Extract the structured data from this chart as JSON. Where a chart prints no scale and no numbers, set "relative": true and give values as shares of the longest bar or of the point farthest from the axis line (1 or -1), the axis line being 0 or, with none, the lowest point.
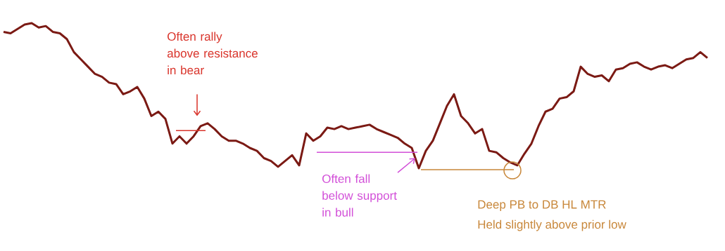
{
  "chart_data": {
    "type": "line",
    "relative": true,
    "color": "#7b1a14",
    "categories": [
      null,
      null,
      null,
      null,
      null,
      null,
      null,
      null,
      null,
      null,
      null,
      null,
      null,
      null,
      null,
      null,
      null,
      null,
      null,
      null,
      null,
      null,
      null,
      null,
      null,
      null,
      null,
      null,
      null,
      null,
      null,
      null,
      null,
      null,
      null,
      null,
      null,
      null,
      null,
      null,
      null,
      null,
      null,
      null,
      null,
      null,
      null,
      null,
      null,
      null,
      null,
      null,
      null,
      null,
      null,
      null,
      null,
      null,
      null,
      null,
      null,
      null,
      null,
      null,
      null,
      null,
      null,
      null,
      null,
      null,
      null,
      null,
      null,
      null,
      null,
      null,
      null,
      null,
      null,
      null,
      null,
      null,
      null,
      null,
      null,
      null,
      null,
      null,
      null,
      null,
      null,
      null,
      null,
      null,
      null,
      null,
      null,
      null,
      null,
      null,
      null
    ],
    "values": [
      0.94,
      0.93,
      0.96,
      0.99,
      1.0,
      0.97,
      0.98,
      0.94,
      0.93,
      0.89,
      0.8,
      0.75,
      0.7,
      0.65,
      0.63,
      0.59,
      0.58,
      0.51,
      0.53,
      0.56,
      0.48,
      0.36,
      0.39,
      0.34,
      0.17,
      0.22,
      0.17,
      0.22,
      0.29,
      0.31,
      0.27,
      0.22,
      0.19,
      0.19,
      0.17,
      0.14,
      0.12,
      0.07,
      0.05,
      0.01,
      0.05,
      0.09,
      0.02,
      0.24,
      0.19,
      0.22,
      0.28,
      0.27,
      0.29,
      0.27,
      0.28,
      0.29,
      0.3,
      0.27,
      0.25,
      0.23,
      0.21,
      0.17,
      0.14,
      0.0,
      0.12,
      0.19,
      0.31,
      0.43,
      0.51,
      0.36,
      0.31,
      0.24,
      0.27,
      0.12,
      0.11,
      0.07,
      0.04,
      0.02,
      0.1,
      0.17,
      0.29,
      0.39,
      0.41,
      0.48,
      0.49,
      0.53,
      0.7,
      0.65,
      0.63,
      0.64,
      0.6,
      0.68,
      0.69,
      0.72,
      0.73,
      0.7,
      0.68,
      0.7,
      0.71,
      0.69,
      0.72,
      0.75,
      0.76,
      0.8,
      0.76
    ],
    "annotations": [
      "Often rally above resistance in bear",
      "Often fall below support in bull",
      "Deep PB to DB HL MTR",
      "Held slightly above prior low"
    ]
  }
}
